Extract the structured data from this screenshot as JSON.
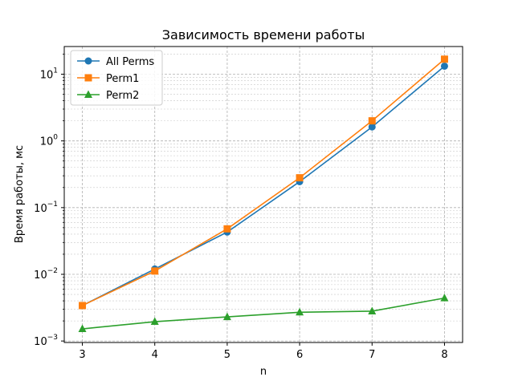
{
  "chart_data": {
    "type": "line",
    "title": "Зависимость времени работы",
    "xlabel": "n",
    "ylabel": "Время работы, мс",
    "x": [
      3,
      4,
      5,
      6,
      7,
      8
    ],
    "xticks": [
      "3",
      "4",
      "5",
      "6",
      "7",
      "8"
    ],
    "xlim": [
      2.75,
      8.25
    ],
    "yscale": "log",
    "ylim": [
      0.00095,
      26
    ],
    "yticks": [
      {
        "value": 0.001,
        "base": "10",
        "exp": "−3"
      },
      {
        "value": 0.01,
        "base": "10",
        "exp": "−2"
      },
      {
        "value": 0.1,
        "base": "10",
        "exp": "−1"
      },
      {
        "value": 1,
        "base": "10",
        "exp": "0"
      },
      {
        "value": 10,
        "base": "10",
        "exp": "1"
      }
    ],
    "grid": true,
    "legend": "upper-left",
    "series": [
      {
        "name": "All Perms",
        "color": "#1f77b4",
        "marker": "circle",
        "values": [
          0.0034,
          0.012,
          0.043,
          0.245,
          1.62,
          13.2
        ]
      },
      {
        "name": "Perm1",
        "color": "#ff7f0e",
        "marker": "square",
        "values": [
          0.0034,
          0.0112,
          0.048,
          0.28,
          2.0,
          16.8
        ]
      },
      {
        "name": "Perm2",
        "color": "#2ca02c",
        "marker": "triangle",
        "values": [
          0.00152,
          0.00195,
          0.0023,
          0.0027,
          0.0028,
          0.0044
        ]
      }
    ]
  }
}
